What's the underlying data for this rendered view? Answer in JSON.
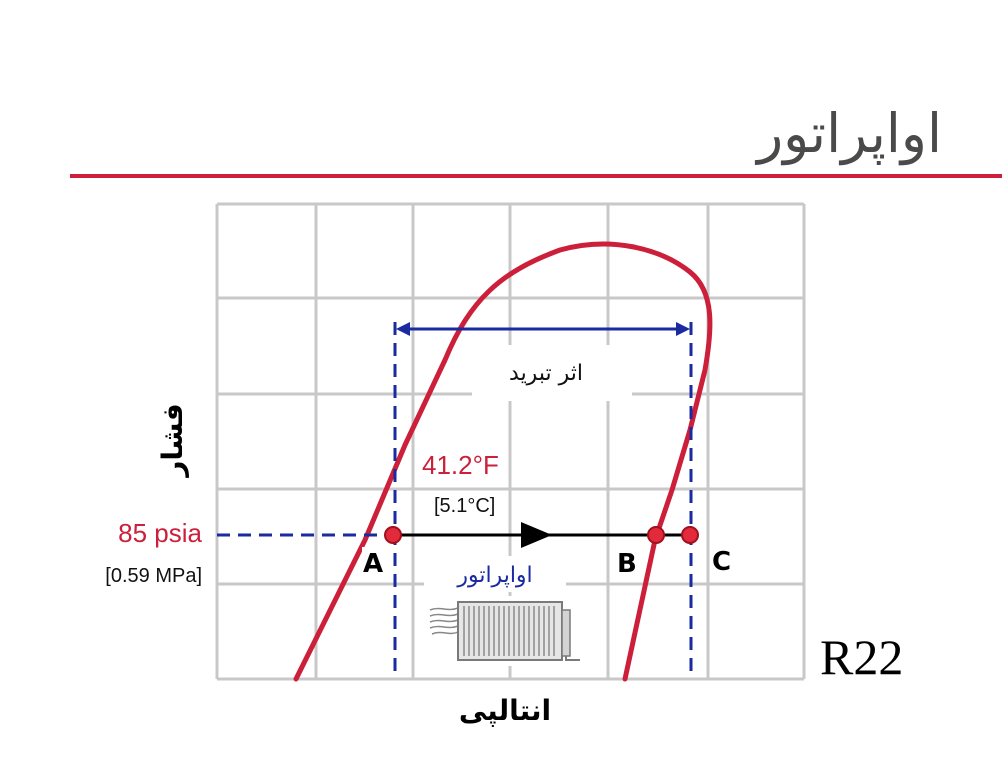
{
  "title": "اواپراتور",
  "axes": {
    "y_label": "فشار",
    "x_label": "انتالپی"
  },
  "refrigerant": "R22",
  "pressure": {
    "psia": "85 psia",
    "mpa": "[0.59 MPa]"
  },
  "temperature": {
    "f": "41.2°F",
    "c": "[5.1°C]"
  },
  "refrigeration_effect_label": "اثر تبرید",
  "evaporator_label": "اواپراتور",
  "points": {
    "a": "A",
    "b": "B",
    "c": "C"
  },
  "colors": {
    "accent_red": "#cc1f3a",
    "blue": "#1a2aa0",
    "grid": "#c8c8c8",
    "title_gray": "#4a4a4a"
  }
}
